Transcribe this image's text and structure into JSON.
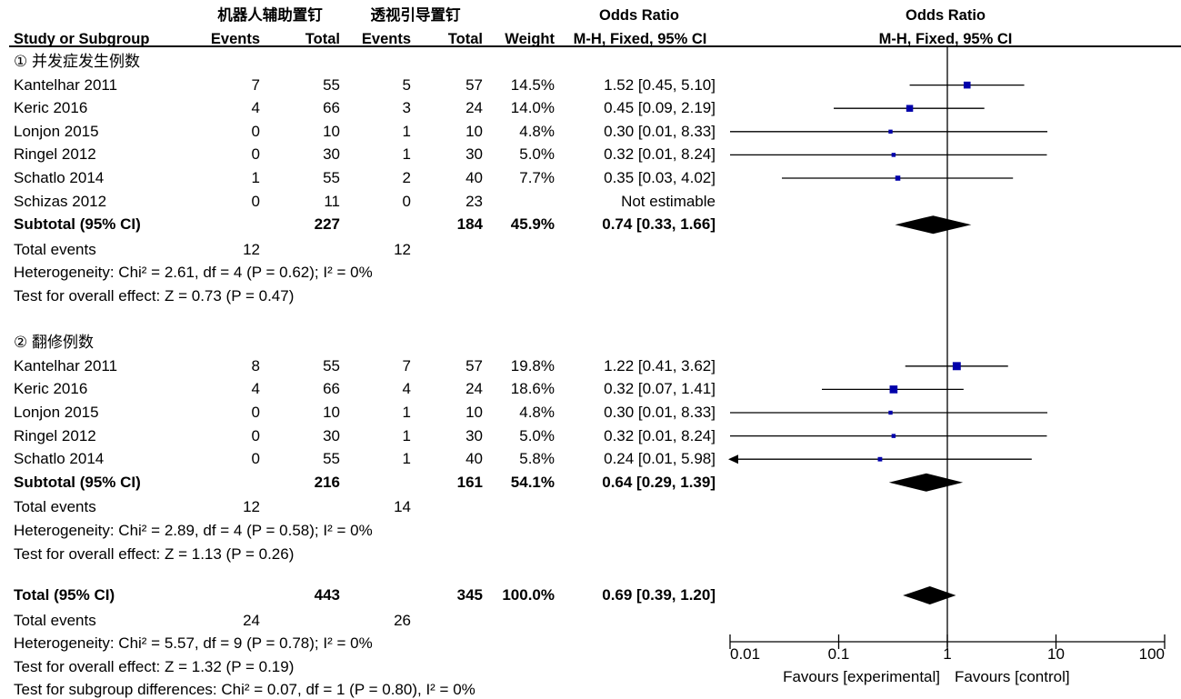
{
  "header": {
    "group_exp": "机器人辅助置钉",
    "group_ctl": "透视引导置钉",
    "or_title": "Odds Ratio",
    "or_method": "M-H, Fixed, 95% CI",
    "study_col": "Study or Subgroup",
    "events": "Events",
    "total": "Total",
    "weight": "Weight",
    "plot_title": "Odds Ratio",
    "plot_method": "M-H, Fixed, 95% CI"
  },
  "subgroups": [
    {
      "title": "① 并发症发生例数",
      "studies": [
        {
          "name": "Kantelhar 2011",
          "e1": "7",
          "t1": "55",
          "e2": "5",
          "t2": "57",
          "w": "14.5%",
          "or": "1.52 [0.45, 5.10]"
        },
        {
          "name": "Keric 2016",
          "e1": "4",
          "t1": "66",
          "e2": "3",
          "t2": "24",
          "w": "14.0%",
          "or": "0.45 [0.09, 2.19]"
        },
        {
          "name": "Lonjon 2015",
          "e1": "0",
          "t1": "10",
          "e2": "1",
          "t2": "10",
          "w": "4.8%",
          "or": "0.30 [0.01, 8.33]"
        },
        {
          "name": "Ringel 2012",
          "e1": "0",
          "t1": "30",
          "e2": "1",
          "t2": "30",
          "w": "5.0%",
          "or": "0.32 [0.01, 8.24]"
        },
        {
          "name": "Schatlo 2014",
          "e1": "1",
          "t1": "55",
          "e2": "2",
          "t2": "40",
          "w": "7.7%",
          "or": "0.35 [0.03, 4.02]"
        },
        {
          "name": "Schizas 2012",
          "e1": "0",
          "t1": "11",
          "e2": "0",
          "t2": "23",
          "w": "",
          "or": "Not estimable"
        }
      ],
      "subtotal": {
        "label": "Subtotal (95% CI)",
        "t1": "227",
        "t2": "184",
        "w": "45.9%",
        "or": "0.74 [0.33, 1.66]"
      },
      "total_events": {
        "label": "Total events",
        "e1": "12",
        "e2": "12"
      },
      "heterogeneity": "Heterogeneity: Chi² = 2.61, df = 4 (P = 0.62); I² = 0%",
      "overall": "Test for overall effect: Z = 0.73 (P = 0.47)"
    },
    {
      "title": "② 翻修例数",
      "studies": [
        {
          "name": "Kantelhar 2011",
          "e1": "8",
          "t1": "55",
          "e2": "7",
          "t2": "57",
          "w": "19.8%",
          "or": "1.22 [0.41, 3.62]"
        },
        {
          "name": "Keric 2016",
          "e1": "4",
          "t1": "66",
          "e2": "4",
          "t2": "24",
          "w": "18.6%",
          "or": "0.32 [0.07, 1.41]"
        },
        {
          "name": "Lonjon 2015",
          "e1": "0",
          "t1": "10",
          "e2": "1",
          "t2": "10",
          "w": "4.8%",
          "or": "0.30 [0.01, 8.33]"
        },
        {
          "name": "Ringel 2012",
          "e1": "0",
          "t1": "30",
          "e2": "1",
          "t2": "30",
          "w": "5.0%",
          "or": "0.32 [0.01, 8.24]"
        },
        {
          "name": "Schatlo 2014",
          "e1": "0",
          "t1": "55",
          "e2": "1",
          "t2": "40",
          "w": "5.8%",
          "or": "0.24 [0.01, 5.98]"
        }
      ],
      "subtotal": {
        "label": "Subtotal (95% CI)",
        "t1": "216",
        "t2": "161",
        "w": "54.1%",
        "or": "0.64 [0.29, 1.39]"
      },
      "total_events": {
        "label": "Total events",
        "e1": "12",
        "e2": "14"
      },
      "heterogeneity": "Heterogeneity: Chi² = 2.89, df = 4 (P = 0.58); I² = 0%",
      "overall": "Test for overall effect: Z = 1.13 (P = 0.26)"
    }
  ],
  "total": {
    "label": "Total (95% CI)",
    "t1": "443",
    "t2": "345",
    "w": "100.0%",
    "or": "0.69 [0.39, 1.20]",
    "total_events": {
      "label": "Total events",
      "e1": "24",
      "e2": "26"
    },
    "heterogeneity": "Heterogeneity: Chi² = 5.57, df = 9 (P = 0.78); I² = 0%",
    "overall": "Test for overall effect: Z = 1.32 (P = 0.19)",
    "subgroup_diff": "Test for subgroup differences: Chi² = 0.07, df = 1 (P = 0.80), I² = 0%"
  },
  "axis": {
    "ticks": [
      "0.01",
      "0.1",
      "1",
      "10",
      "100"
    ],
    "favours_left": "Favours [experimental]",
    "favours_right": "Favours [control]"
  },
  "chart_data": {
    "type": "forest",
    "scale": "log",
    "xlim": [
      0.01,
      100
    ],
    "reference_line": 1,
    "colors": {
      "point": "#0000aa",
      "line": "#000000",
      "diamond": "#000000"
    },
    "series": [
      {
        "name": "Kantelhar 2011",
        "subgroup": 1,
        "or": 1.52,
        "lo": 0.45,
        "hi": 5.1,
        "weight": 14.5
      },
      {
        "name": "Keric 2016",
        "subgroup": 1,
        "or": 0.45,
        "lo": 0.09,
        "hi": 2.19,
        "weight": 14.0
      },
      {
        "name": "Lonjon 2015",
        "subgroup": 1,
        "or": 0.3,
        "lo": 0.01,
        "hi": 8.33,
        "weight": 4.8
      },
      {
        "name": "Ringel 2012",
        "subgroup": 1,
        "or": 0.32,
        "lo": 0.01,
        "hi": 8.24,
        "weight": 5.0
      },
      {
        "name": "Schatlo 2014",
        "subgroup": 1,
        "or": 0.35,
        "lo": 0.03,
        "hi": 4.02,
        "weight": 7.7
      },
      {
        "name": "Subtotal (95% CI)",
        "subgroup": 1,
        "diamond": true,
        "or": 0.74,
        "lo": 0.33,
        "hi": 1.66
      },
      {
        "name": "Kantelhar 2011",
        "subgroup": 2,
        "or": 1.22,
        "lo": 0.41,
        "hi": 3.62,
        "weight": 19.8
      },
      {
        "name": "Keric 2016",
        "subgroup": 2,
        "or": 0.32,
        "lo": 0.07,
        "hi": 1.41,
        "weight": 18.6
      },
      {
        "name": "Lonjon 2015",
        "subgroup": 2,
        "or": 0.3,
        "lo": 0.01,
        "hi": 8.33,
        "weight": 4.8
      },
      {
        "name": "Ringel 2012",
        "subgroup": 2,
        "or": 0.32,
        "lo": 0.01,
        "hi": 8.24,
        "weight": 5.0
      },
      {
        "name": "Schatlo 2014",
        "subgroup": 2,
        "or": 0.24,
        "lo": 0.01,
        "hi": 5.98,
        "weight": 5.8
      },
      {
        "name": "Subtotal (95% CI)",
        "subgroup": 2,
        "diamond": true,
        "or": 0.64,
        "lo": 0.29,
        "hi": 1.39
      },
      {
        "name": "Total (95% CI)",
        "diamond": true,
        "or": 0.69,
        "lo": 0.39,
        "hi": 1.2
      }
    ]
  }
}
